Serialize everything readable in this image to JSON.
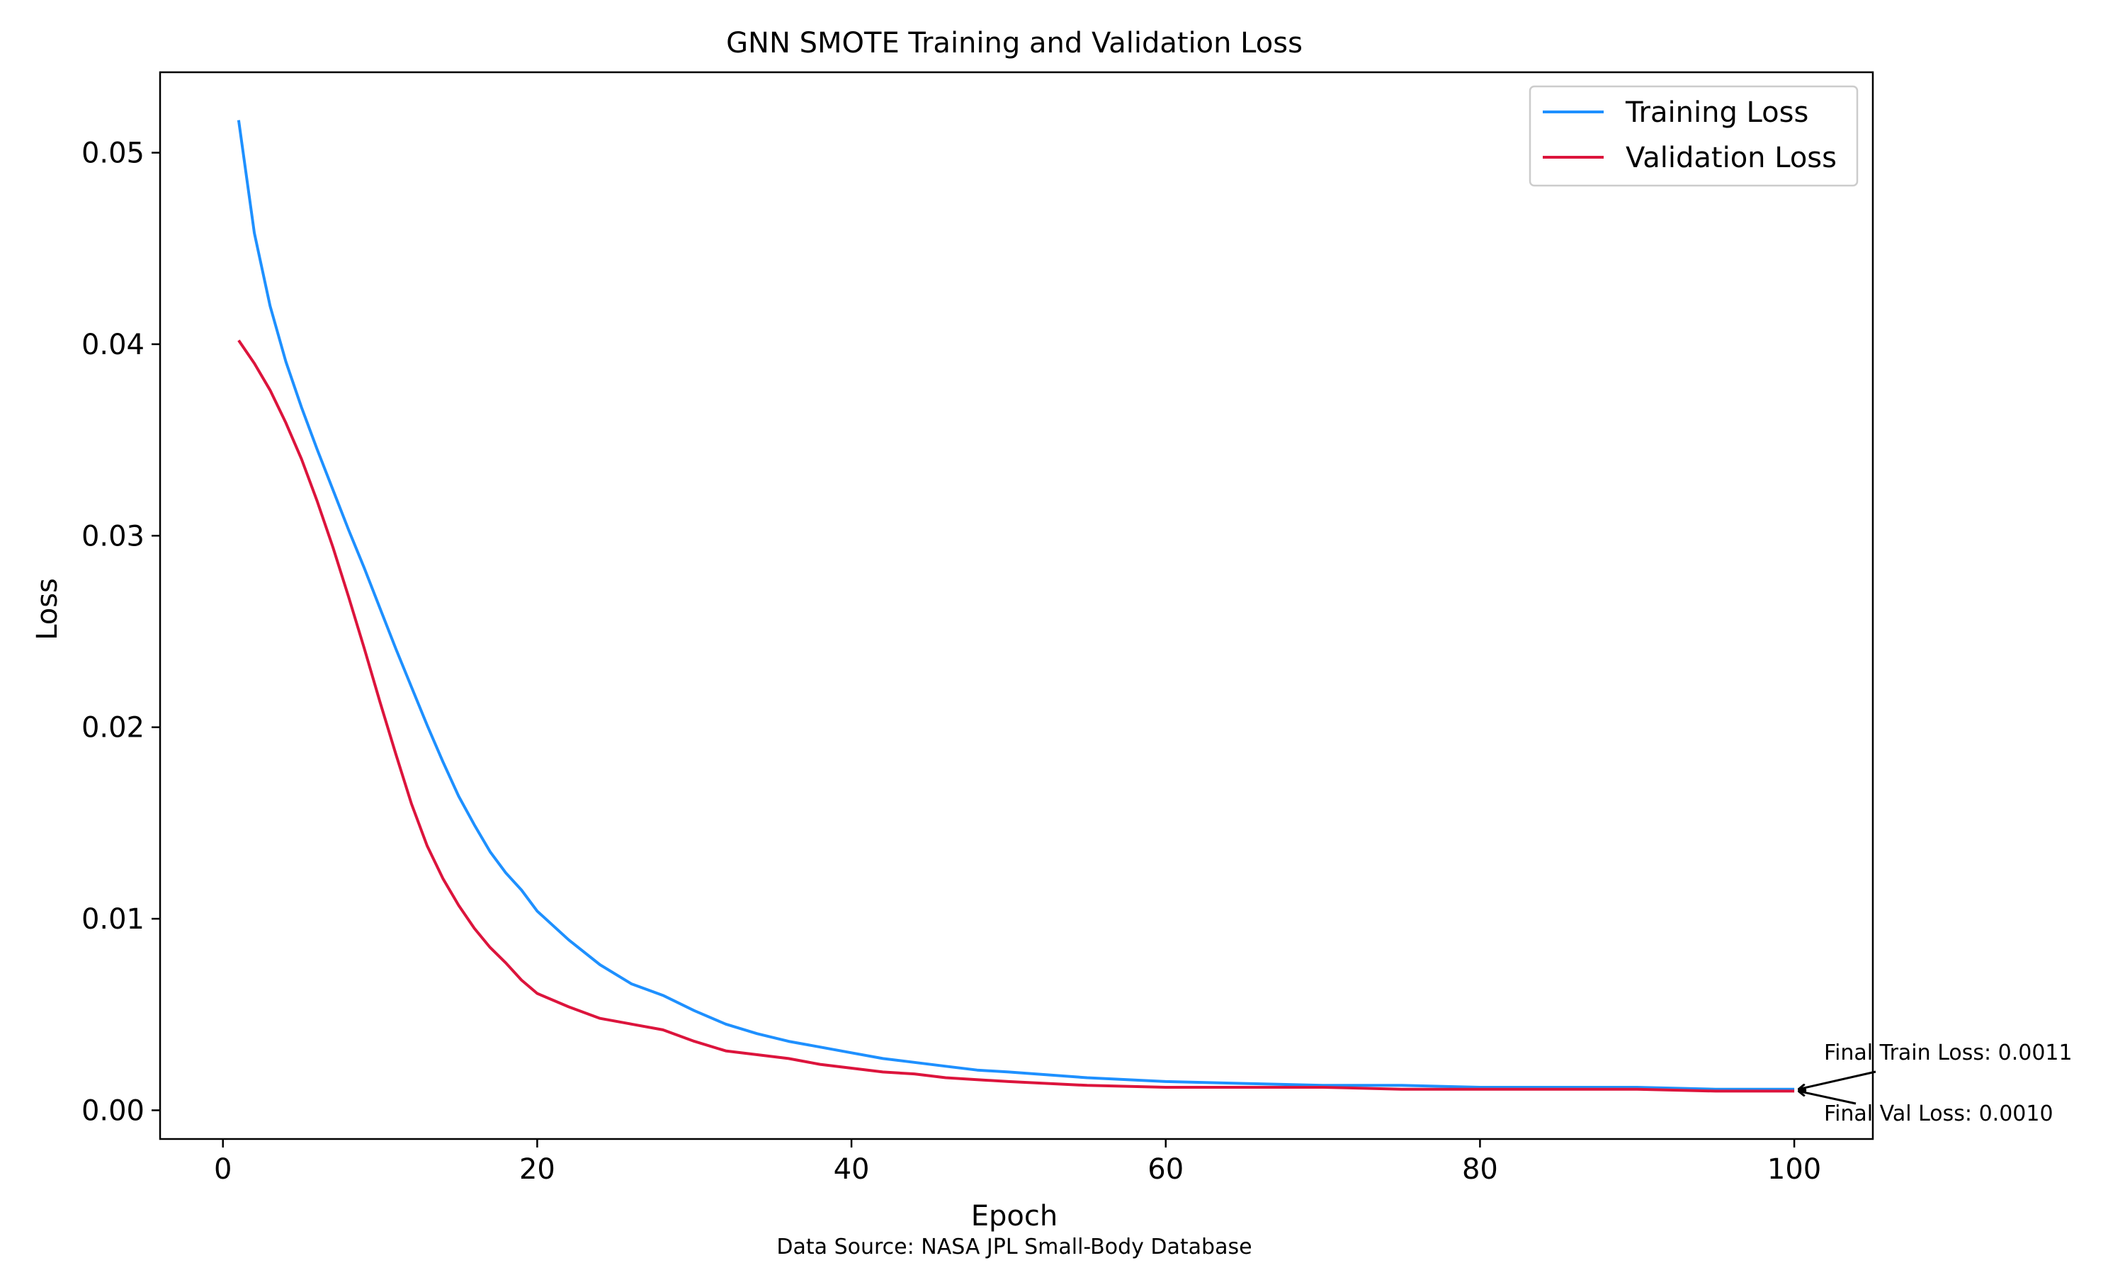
{
  "chart_data": {
    "type": "line",
    "title": "GNN SMOTE Training and Validation Loss",
    "xlabel": "Epoch",
    "ylabel": "Loss",
    "xlim": [
      -4,
      105
    ],
    "ylim": [
      -0.0015,
      0.0542
    ],
    "xticks": [
      0,
      20,
      40,
      60,
      80,
      100
    ],
    "xtick_labels": [
      "0",
      "20",
      "40",
      "60",
      "80",
      "100"
    ],
    "yticks": [
      0.0,
      0.01,
      0.02,
      0.03,
      0.04,
      0.05
    ],
    "ytick_labels": [
      "0.00",
      "0.01",
      "0.02",
      "0.03",
      "0.04",
      "0.05"
    ],
    "grid": false,
    "legend_position": "top-right",
    "footnote": "Data Source: NASA JPL Small-Body Database",
    "series": [
      {
        "name": "Training Loss",
        "color": "#1e90ff",
        "x": [
          1,
          2,
          3,
          4,
          5,
          6,
          7,
          8,
          9,
          10,
          11,
          12,
          13,
          14,
          15,
          16,
          17,
          18,
          19,
          20,
          22,
          24,
          26,
          28,
          30,
          32,
          34,
          36,
          38,
          40,
          42,
          44,
          46,
          48,
          50,
          55,
          60,
          65,
          70,
          75,
          80,
          85,
          90,
          95,
          100
        ],
        "y": [
          0.0517,
          0.0458,
          0.042,
          0.0391,
          0.0367,
          0.0345,
          0.0324,
          0.0303,
          0.0283,
          0.0262,
          0.0241,
          0.0221,
          0.0201,
          0.0182,
          0.0164,
          0.0149,
          0.0135,
          0.0124,
          0.0115,
          0.0104,
          0.0089,
          0.0076,
          0.0066,
          0.006,
          0.0052,
          0.0045,
          0.004,
          0.0036,
          0.0033,
          0.003,
          0.0027,
          0.0025,
          0.0023,
          0.0021,
          0.002,
          0.0017,
          0.0015,
          0.0014,
          0.0013,
          0.0013,
          0.0012,
          0.0012,
          0.0012,
          0.0011,
          0.0011
        ]
      },
      {
        "name": "Validation Loss",
        "color": "#dc143c",
        "x": [
          1,
          2,
          3,
          4,
          5,
          6,
          7,
          8,
          9,
          10,
          11,
          12,
          13,
          14,
          15,
          16,
          17,
          18,
          19,
          20,
          22,
          24,
          26,
          28,
          30,
          32,
          34,
          36,
          38,
          40,
          42,
          44,
          46,
          48,
          50,
          55,
          60,
          65,
          70,
          75,
          80,
          85,
          90,
          95,
          100
        ],
        "y": [
          0.0402,
          0.039,
          0.0376,
          0.0359,
          0.034,
          0.0318,
          0.0294,
          0.0268,
          0.0241,
          0.0213,
          0.0186,
          0.016,
          0.0138,
          0.0121,
          0.0107,
          0.0095,
          0.0085,
          0.0077,
          0.0068,
          0.0061,
          0.0054,
          0.0048,
          0.0045,
          0.0042,
          0.0036,
          0.0031,
          0.0029,
          0.0027,
          0.0024,
          0.0022,
          0.002,
          0.0019,
          0.0017,
          0.0016,
          0.0015,
          0.0013,
          0.0012,
          0.0012,
          0.0012,
          0.0011,
          0.0011,
          0.0011,
          0.0011,
          0.001,
          0.001
        ]
      }
    ],
    "annotations": [
      {
        "text": "Final Train Loss: 0.0011",
        "x": 100,
        "y": 0.0011
      },
      {
        "text": "Final Val Loss: 0.0010",
        "x": 100,
        "y": 0.001
      }
    ]
  }
}
